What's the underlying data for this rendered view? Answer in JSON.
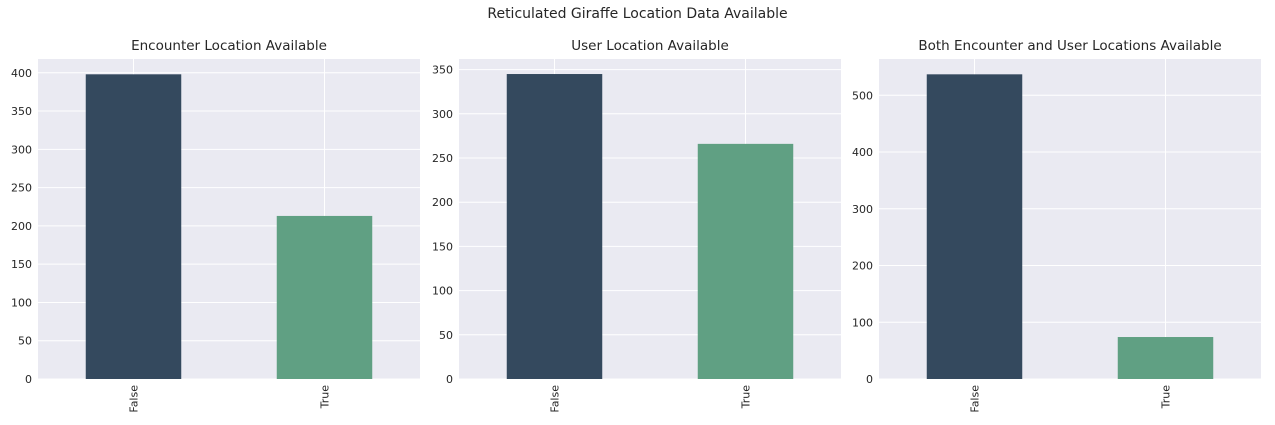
{
  "figure": {
    "suptitle": "Reticulated Giraffe Location Data Available"
  },
  "colors": {
    "axes_bg": "#eaeaf2",
    "grid": "#ffffff",
    "false_bar": "#34495e",
    "true_bar": "#60a083"
  },
  "chart_data": [
    {
      "type": "bar",
      "title": "Encounter Location Available",
      "categories": [
        "False",
        "True"
      ],
      "values": [
        398,
        213
      ],
      "ylim": [
        0,
        418
      ],
      "yticks": [
        0,
        50,
        100,
        150,
        200,
        250,
        300,
        350,
        400
      ],
      "grid": true
    },
    {
      "type": "bar",
      "title": "User Location Available",
      "categories": [
        "False",
        "True"
      ],
      "values": [
        345,
        266
      ],
      "ylim": [
        0,
        362
      ],
      "yticks": [
        0,
        50,
        100,
        150,
        200,
        250,
        300,
        350
      ],
      "grid": true
    },
    {
      "type": "bar",
      "title": "Both Encounter and User Locations Available",
      "categories": [
        "False",
        "True"
      ],
      "values": [
        537,
        74
      ],
      "ylim": [
        0,
        564
      ],
      "yticks": [
        0,
        100,
        200,
        300,
        400,
        500
      ],
      "grid": true
    }
  ]
}
